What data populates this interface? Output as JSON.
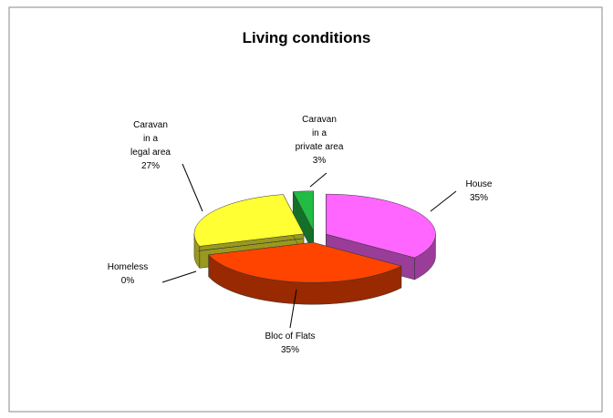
{
  "chart_data": {
    "type": "pie",
    "title": "Living conditions",
    "categories": [
      "House",
      "Bloc of Flats",
      "Homeless",
      "Caravan\nin a\nlegal area",
      "Caravan\nin a\nprivate area"
    ],
    "values": [
      35,
      35,
      0,
      27,
      3
    ],
    "value_labels": [
      "35%",
      "35%",
      "0%",
      "27%",
      "3%"
    ],
    "colors": [
      "#ff66ff",
      "#ff4400",
      "#a8a890",
      "#ffff33",
      "#22bb44"
    ]
  }
}
